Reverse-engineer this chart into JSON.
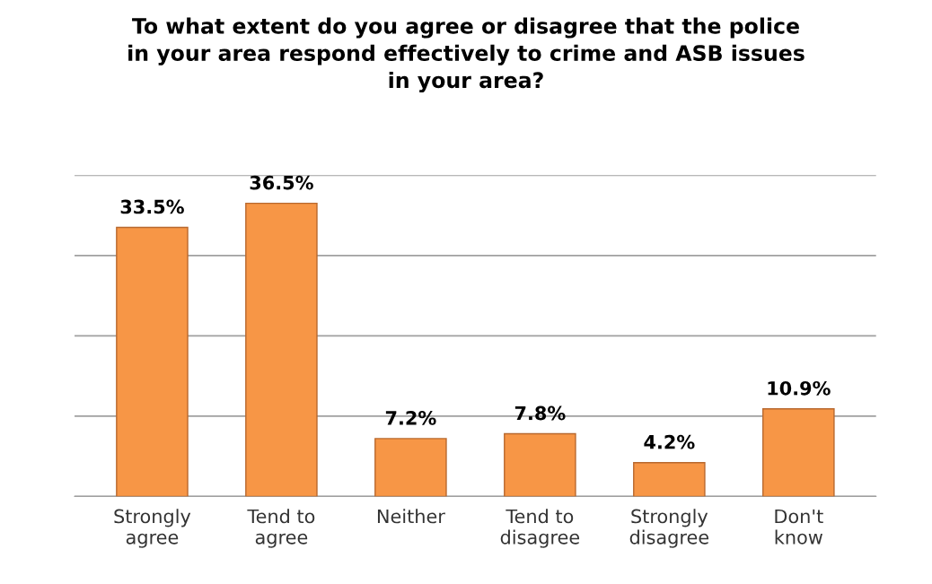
{
  "chart_data": {
    "type": "bar",
    "title": "To what extent do you agree or disagree that the police\nin your area respond effectively to crime and ASB issues\nin your area?",
    "categories": [
      "Strongly\nagree",
      "Tend to\nagree",
      "Neither",
      "Tend to\ndisagree",
      "Strongly\ndisagree",
      "Don't\nknow"
    ],
    "values": [
      33.5,
      36.5,
      7.2,
      7.8,
      4.2,
      10.9
    ],
    "value_labels": [
      "33.5%",
      "36.5%",
      "7.2%",
      "7.8%",
      "4.2%",
      "10.9%"
    ],
    "color": "#f79646",
    "ylim": [
      0,
      40
    ],
    "yticks": [
      {
        "value": 0,
        "label": null
      },
      {
        "value": 10,
        "label": null
      },
      {
        "value": 20,
        "label": null
      },
      {
        "value": 30,
        "label": null
      },
      {
        "value": 40,
        "label": null
      }
    ],
    "grid": "y",
    "tick_labels": "x"
  }
}
